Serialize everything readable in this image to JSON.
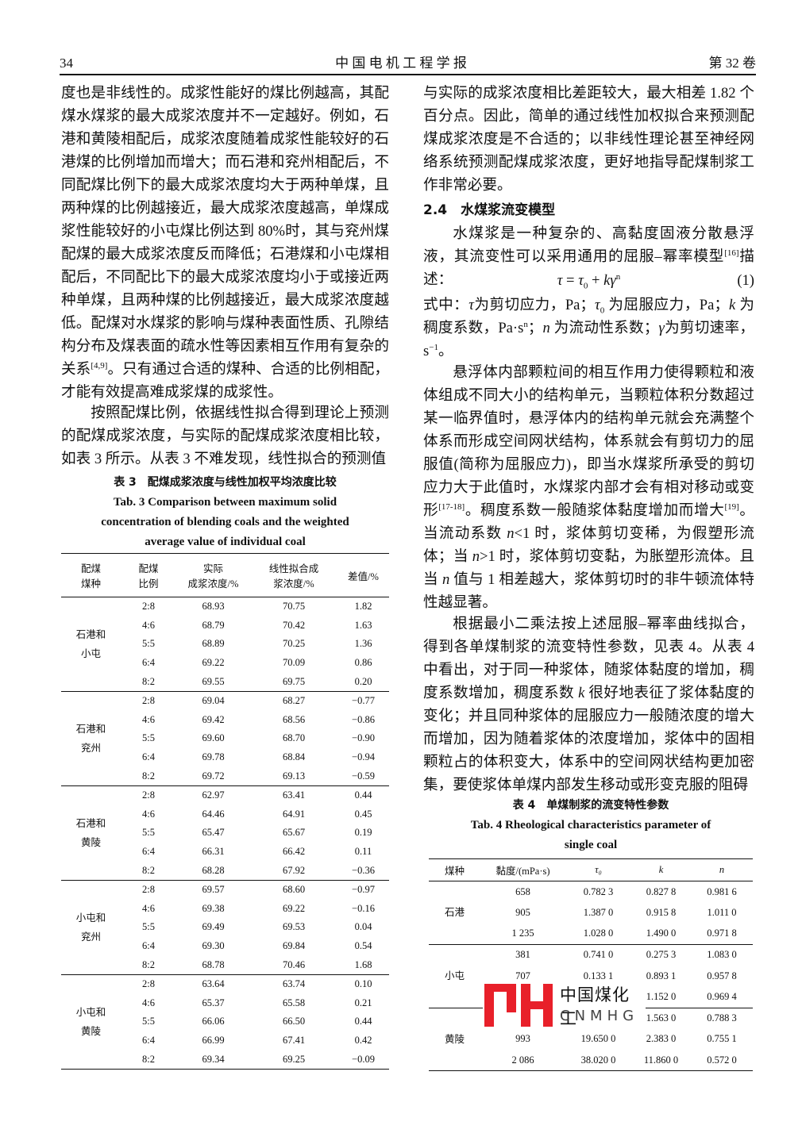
{
  "header": {
    "page": "34",
    "journal": "中 国 电 机 工 程 学 报",
    "volume": "第 32 卷"
  },
  "body": {
    "left": [
      {
        "runs": [
          {
            "text": "度也是非线性的。成浆性能好的煤比例越高，其配煤水煤浆的最大成浆浓度并不一定越好。例如，石港和黄陵相配后，成浆浓度随着成浆性能较好的石港煤的比例增加而增大；而石港和兖州相配后，不同配煤比例下的最大成浆浓度均大于两种单煤，且两种煤的比例越接近，最大成浆浓度越高，单煤成浆性能较好的小屯煤比例达到 80%时，其与兖州煤配煤的最大成浆浓度反而降低；石港煤和小屯煤相配后，不同配比下的最大成浆浓度均小于或接近两种单煤，且两种煤的比例越接近，最大成浆浓度越低。配煤对水煤浆的影响与煤种表面性质、孔隙结构分布及煤表面的疏水性等因素相互作用有复杂的关系"
          },
          {
            "sup": "[4,9]"
          },
          {
            "text": "。只有通过合适的煤种、合适的比例相配，才能有效提高难成浆煤的成浆性。"
          }
        ]
      },
      {
        "runs": [
          {
            "text": "按照配煤比例，依据线性拟合得到理论上预测的配煤成浆浓度，与实际的配煤成浆浓度相比较，如表 3 所示。从表 3 不难发现，线性拟合的预测值"
          }
        ]
      }
    ],
    "right": [
      {
        "runs": [
          {
            "text": "与实际的成浆浓度相比差距较大，最大相差 1.82 个百分点。因此，简单的通过线性加权拟合来预测配煤成浆浓度是不合适的；以非线性理论甚至神经网络系统预测配煤成浆浓度，更好地指导配煤制浆工作非常必要。"
          }
        ]
      },
      {
        "runs": [
          {
            "text": "2.4　水煤浆流变模型"
          }
        ]
      },
      {
        "runs": [
          {
            "text": "水煤浆是一种复杂的、高黏度固液分散悬浮液，其流变性可以采用通用的屈服–幂率模型"
          },
          {
            "sup": "[16]"
          },
          {
            "text": "描述："
          }
        ]
      },
      {
        "runs": [
          {
            "italic": "τ"
          },
          {
            "text": " = "
          },
          {
            "italic": "τ"
          },
          {
            "sub": "0"
          },
          {
            "text": " + "
          },
          {
            "italic": "kγ"
          },
          {
            "sup": "n"
          }
        ],
        "number": "(1)"
      },
      {
        "runs": [
          {
            "text": "式中："
          },
          {
            "italic": "τ"
          },
          {
            "text": "为剪切应力，Pa；"
          },
          {
            "italic": "τ"
          },
          {
            "sub": "0"
          },
          {
            "text": " 为屈服应力，Pa；"
          },
          {
            "italic": "k"
          },
          {
            "text": " 为稠度系数，Pa·s"
          },
          {
            "sup": "n"
          },
          {
            "text": "；"
          },
          {
            "italic": "n"
          },
          {
            "text": " 为流动性系数；"
          },
          {
            "italic": "γ"
          },
          {
            "text": "为剪切速率，s"
          },
          {
            "sup": "−1"
          },
          {
            "text": "。"
          }
        ]
      },
      {
        "runs": [
          {
            "text": "悬浮体内部颗粒间的相互作用力使得颗粒和液体组成不同大小的结构单元，当颗粒体积分数超过某一临界值时，悬浮体内的结构单元就会充满整个体系而形成空间网状结构，体系就会有剪切力的屈服值(简称为屈服应力)，即当水煤浆所承受的剪切应力大于此值时，水煤浆内部才会有相对移动或变形"
          },
          {
            "sup": "[17-18]"
          },
          {
            "text": "。稠度系数一般随浆体黏度增加而增大"
          },
          {
            "sup": "[19]"
          },
          {
            "text": "。当流动系数 "
          },
          {
            "italic": "n"
          },
          {
            "text": "<1 时，浆体剪切变稀，为假塑形流体；当 "
          },
          {
            "italic": "n"
          },
          {
            "text": ">1 时，浆体剪切变黏，为胀塑形流体。且当 "
          },
          {
            "italic": "n"
          },
          {
            "text": " 值与 1 相差越大，浆体剪切时的非牛顿流体特性越显著。"
          }
        ]
      },
      {
        "runs": [
          {
            "text": "根据最小二乘法按上述屈服–幂率曲线拟合，得到各单煤制浆的流变特性参数，见表 4。从表 4 中看出，对于同一种浆体，随浆体黏度的增加，稠度系数增加，稠度系数 "
          },
          {
            "italic": "k"
          },
          {
            "text": " 很好地表征了浆体黏度的变化；并且同种浆体的屈服应力一般随浓度的增大而增加，因为随着浆体的浓度增加，浆体中的固相颗粒占的体积变大，体系中的空间网状结构更加密集，要使浆体单煤内部发生移动或形变克服的阻碍"
          }
        ]
      }
    ]
  },
  "table3": {
    "caption_cn": "表 3　配煤成浆浓度与线性加权平均浓度比较",
    "caption_en": [
      "Tab. 3   Comparison between maximum solid",
      "concentration of blending coals and the weighted",
      "average value of individual coal"
    ],
    "header": [
      [
        "配煤",
        "煤种"
      ],
      [
        "配煤",
        "比例"
      ],
      [
        "实际",
        "成浆浓度/%"
      ],
      [
        "线性拟合成",
        "浆浓度/%"
      ],
      [
        "差值/%"
      ]
    ],
    "groups": [
      {
        "name": [
          "石港和",
          "小屯"
        ],
        "rows": [
          [
            "2:8",
            "68.93",
            "70.75",
            "1.82"
          ],
          [
            "4:6",
            "68.79",
            "70.42",
            "1.63"
          ],
          [
            "5:5",
            "68.89",
            "70.25",
            "1.36"
          ],
          [
            "6:4",
            "69.22",
            "70.09",
            "0.86"
          ],
          [
            "8:2",
            "69.55",
            "69.75",
            "0.20"
          ]
        ]
      },
      {
        "name": [
          "石港和",
          "兖州"
        ],
        "rows": [
          [
            "2:8",
            "69.04",
            "68.27",
            "−0.77"
          ],
          [
            "4:6",
            "69.42",
            "68.56",
            "−0.86"
          ],
          [
            "5:5",
            "69.60",
            "68.70",
            "−0.90"
          ],
          [
            "6:4",
            "69.78",
            "68.84",
            "−0.94"
          ],
          [
            "8:2",
            "69.72",
            "69.13",
            "−0.59"
          ]
        ]
      },
      {
        "name": [
          "石港和",
          "黄陵"
        ],
        "rows": [
          [
            "2:8",
            "62.97",
            "63.41",
            "0.44"
          ],
          [
            "4:6",
            "64.46",
            "64.91",
            "0.45"
          ],
          [
            "5:5",
            "65.47",
            "65.67",
            "0.19"
          ],
          [
            "6:4",
            "66.31",
            "66.42",
            "0.11"
          ],
          [
            "8:2",
            "68.28",
            "67.92",
            "−0.36"
          ]
        ]
      },
      {
        "name": [
          "小屯和",
          "兖州"
        ],
        "rows": [
          [
            "2:8",
            "69.57",
            "68.60",
            "−0.97"
          ],
          [
            "4:6",
            "69.38",
            "69.22",
            "−0.16"
          ],
          [
            "5:5",
            "69.49",
            "69.53",
            "0.04"
          ],
          [
            "6:4",
            "69.30",
            "69.84",
            "0.54"
          ],
          [
            "8:2",
            "68.78",
            "70.46",
            "1.68"
          ]
        ]
      },
      {
        "name": [
          "小屯和",
          "黄陵"
        ],
        "rows": [
          [
            "2:8",
            "63.64",
            "63.74",
            "0.10"
          ],
          [
            "4:6",
            "65.37",
            "65.58",
            "0.21"
          ],
          [
            "5:5",
            "66.06",
            "66.50",
            "0.44"
          ],
          [
            "6:4",
            "66.99",
            "67.41",
            "0.42"
          ],
          [
            "8:2",
            "69.34",
            "69.25",
            "−0.09"
          ]
        ]
      }
    ]
  },
  "table4": {
    "caption_cn": "表 4　单煤制浆的流变特性参数",
    "caption_en": [
      "Tab. 4   Rheological characteristics parameter of",
      "single coal"
    ],
    "header": [
      [
        "煤种"
      ],
      [
        "黏度/(mPa·s)"
      ],
      [
        "τ₀"
      ],
      [
        "k"
      ],
      [
        "n"
      ]
    ],
    "groups": [
      {
        "name": [
          "石港"
        ],
        "rows": [
          [
            "658",
            "0.782 3",
            "0.827 8",
            "0.981 6"
          ],
          [
            "905",
            "1.387 0",
            "0.915 8",
            "1.011 0"
          ],
          [
            "1 235",
            "1.028 0",
            "1.490 0",
            "0.971 8"
          ]
        ]
      },
      {
        "name": [
          "小屯"
        ],
        "rows": [
          [
            "381",
            "0.741 0",
            "0.275 3",
            "1.083 0"
          ],
          [
            "707",
            "0.133 1",
            "0.893 1",
            "0.957 8"
          ],
          [
            null,
            null,
            "1.152 0",
            "0.969 4"
          ]
        ]
      },
      {
        "name": [
          "黄陵"
        ],
        "rows": [
          [
            null,
            null,
            "1.563 0",
            "0.788 3"
          ],
          [
            "993",
            "19.650 0",
            "2.383 0",
            "0.755 1"
          ],
          [
            "2 086",
            "38.020 0",
            "11.860 0",
            "0.572 0"
          ]
        ]
      }
    ]
  },
  "watermark": {
    "cn": "中国煤化工",
    "en": "CNMHG"
  }
}
